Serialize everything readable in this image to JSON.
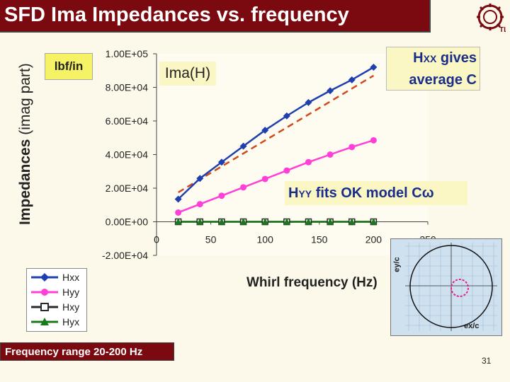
{
  "title": "SFD Ima Impedances vs. frequency",
  "ylabel_bold": "Impedances",
  "ylabel_rest": " (imag part)",
  "units": "lbf/in",
  "ima_label": "Ima(H)",
  "xlabel": "Whirl frequency (Hz)",
  "callout_hxx": {
    "main": "H",
    "sub": "XX",
    "line1_rest": " gives",
    "line2": "average C"
  },
  "callout_hyy": {
    "main": "H",
    "sub": "YY",
    "rest": " fits OK model Cω"
  },
  "freq_range": "Frequency range 20-200 Hz",
  "page_number": "31",
  "orbit_inset": {
    "xlabel": "ex/c",
    "ylabel": "ey/c"
  },
  "chart_data": {
    "type": "line",
    "xlabel": "Whirl frequency (Hz)",
    "ylabel": "Impedances (imag part)",
    "xlim": [
      0,
      250
    ],
    "ylim": [
      -20000,
      100000
    ],
    "x_ticks": [
      "0",
      "50",
      "100",
      "150",
      "200",
      "250"
    ],
    "y_ticks": [
      "-2.00E+04",
      "0.00E+00",
      "2.00E+04",
      "4.00E+04",
      "6.00E+04",
      "8.00E+04",
      "1.00E+05"
    ],
    "x": [
      20,
      40,
      60,
      80,
      100,
      120,
      140,
      160,
      180,
      200
    ],
    "series": [
      {
        "name": "Hxx",
        "color": "#1f3fb0",
        "marker": "diamond",
        "values": [
          13500,
          25800,
          35500,
          45000,
          54500,
          63000,
          71000,
          78000,
          84500,
          92000
        ]
      },
      {
        "name": "Hyy",
        "color": "#ff3fd8",
        "marker": "circle",
        "values": [
          5500,
          10500,
          15500,
          20500,
          25500,
          30500,
          35500,
          40000,
          44500,
          48500
        ]
      },
      {
        "name": "Hxy",
        "color": "#2a2a2a",
        "marker": "square",
        "values": [
          0,
          0,
          0,
          0,
          0,
          0,
          0,
          0,
          0,
          0
        ]
      },
      {
        "name": "Hyx",
        "color": "#1a7a1a",
        "marker": "triangle",
        "values": [
          0,
          0,
          0,
          0,
          0,
          0,
          0,
          0,
          0,
          0
        ]
      }
    ],
    "fit_line": {
      "color": "#d04a1a",
      "dashed": true,
      "x": [
        20,
        200
      ],
      "values": [
        17500,
        87000
      ]
    },
    "legend_position": "bottom-left"
  }
}
